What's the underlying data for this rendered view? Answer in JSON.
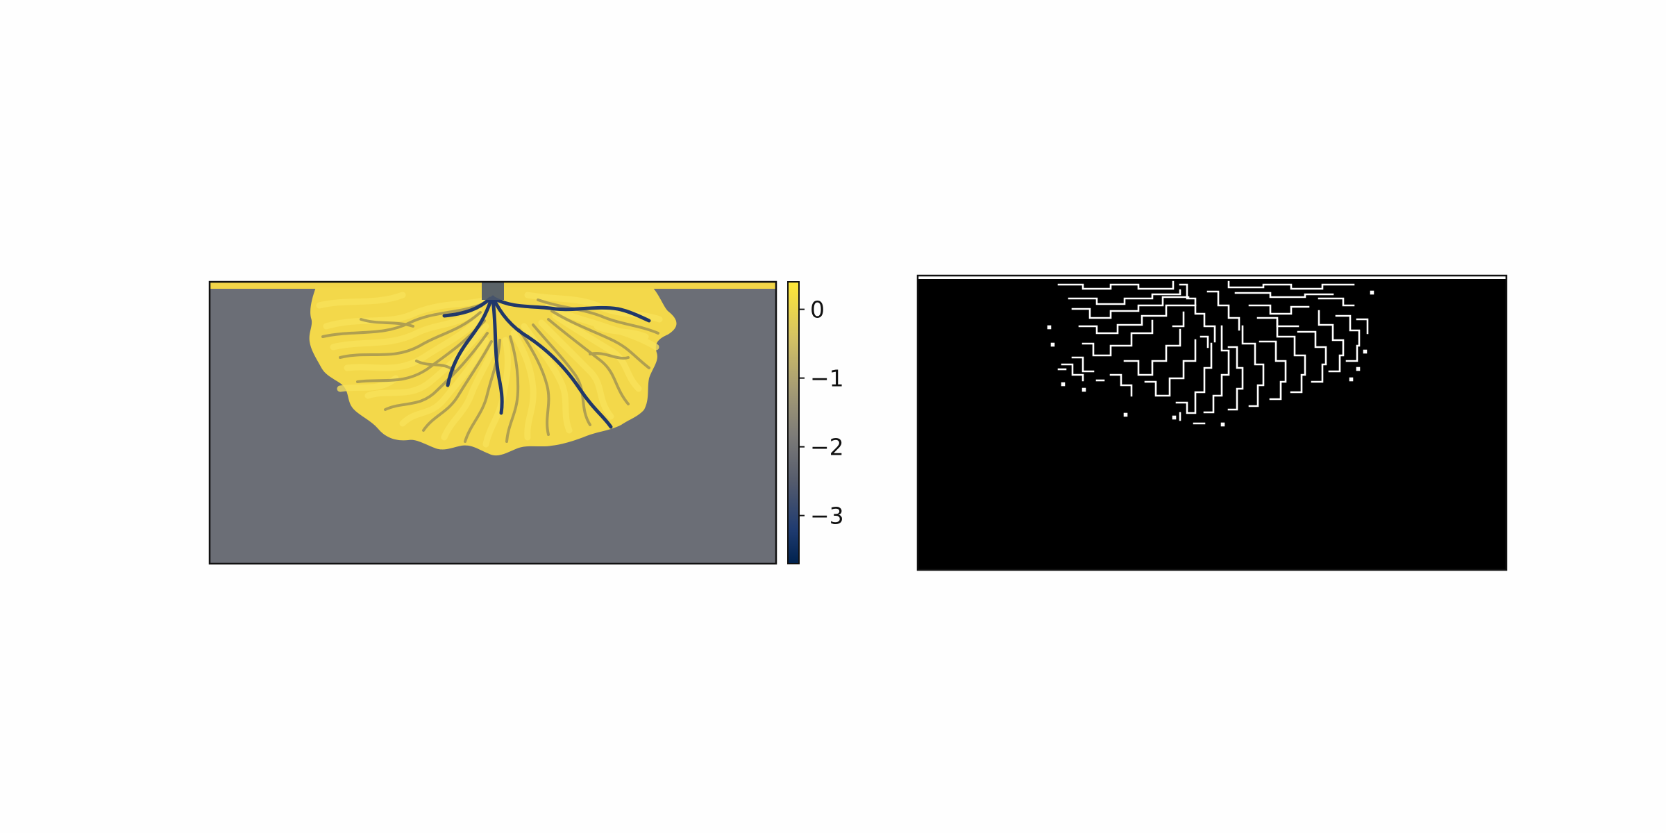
{
  "chart_data": [
    {
      "type": "heatmap",
      "title": "",
      "xlabel": "",
      "ylabel": "",
      "colormap": "cividis",
      "colorbar": {
        "range": [
          -3.7,
          0.4
        ],
        "ticks": [
          0,
          -1,
          -2,
          -3
        ],
        "tick_labels": [
          "0",
          "−1",
          "−2",
          "−3"
        ]
      },
      "colors": {
        "land": "#f3d84a",
        "land_light": "#f9e25a",
        "ocean": "#6b6e76",
        "channel": "#21386a",
        "top_band": "#f2d548"
      }
    },
    {
      "type": "heatmap",
      "title": "",
      "xlabel": "",
      "ylabel": "",
      "colormap": "binary",
      "colors": {
        "background": "#000000",
        "edges": "#ffffff"
      }
    }
  ]
}
